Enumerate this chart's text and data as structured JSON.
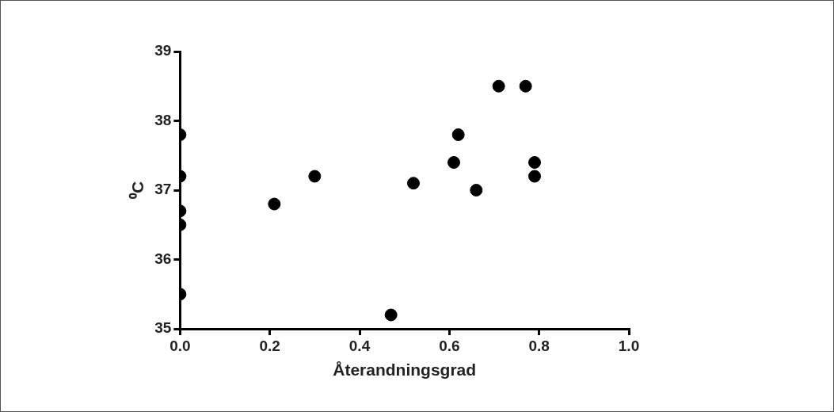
{
  "chart_data": {
    "type": "scatter",
    "xlabel": "Återandningsgrad",
    "ylabel": "⁰C",
    "series": [
      {
        "color": "#000000",
        "x": [
          0,
          0,
          0,
          0,
          0,
          0.21,
          0.3,
          0.47,
          0.52,
          0.61,
          0.62,
          0.66,
          0.71,
          0.77,
          0.79,
          0.79
        ],
        "values": [
          37.8,
          37.2,
          36.7,
          36.5,
          35.5,
          36.8,
          37.2,
          35.2,
          37.1,
          37.4,
          37.8,
          37.0,
          38.5,
          38.5,
          37.4,
          37.2
        ]
      }
    ],
    "xlim": [
      0,
      1.0
    ],
    "xticks": [
      {
        "value": 0,
        "label": "0.0"
      },
      0.2,
      0.4,
      0.6,
      0.8,
      {
        "value": 1,
        "label": "1.0"
      }
    ],
    "ylim": [
      35,
      39
    ],
    "yticks": [
      35,
      36,
      37,
      38,
      39
    ],
    "grid": false,
    "legend": false,
    "marker": "circle"
  }
}
